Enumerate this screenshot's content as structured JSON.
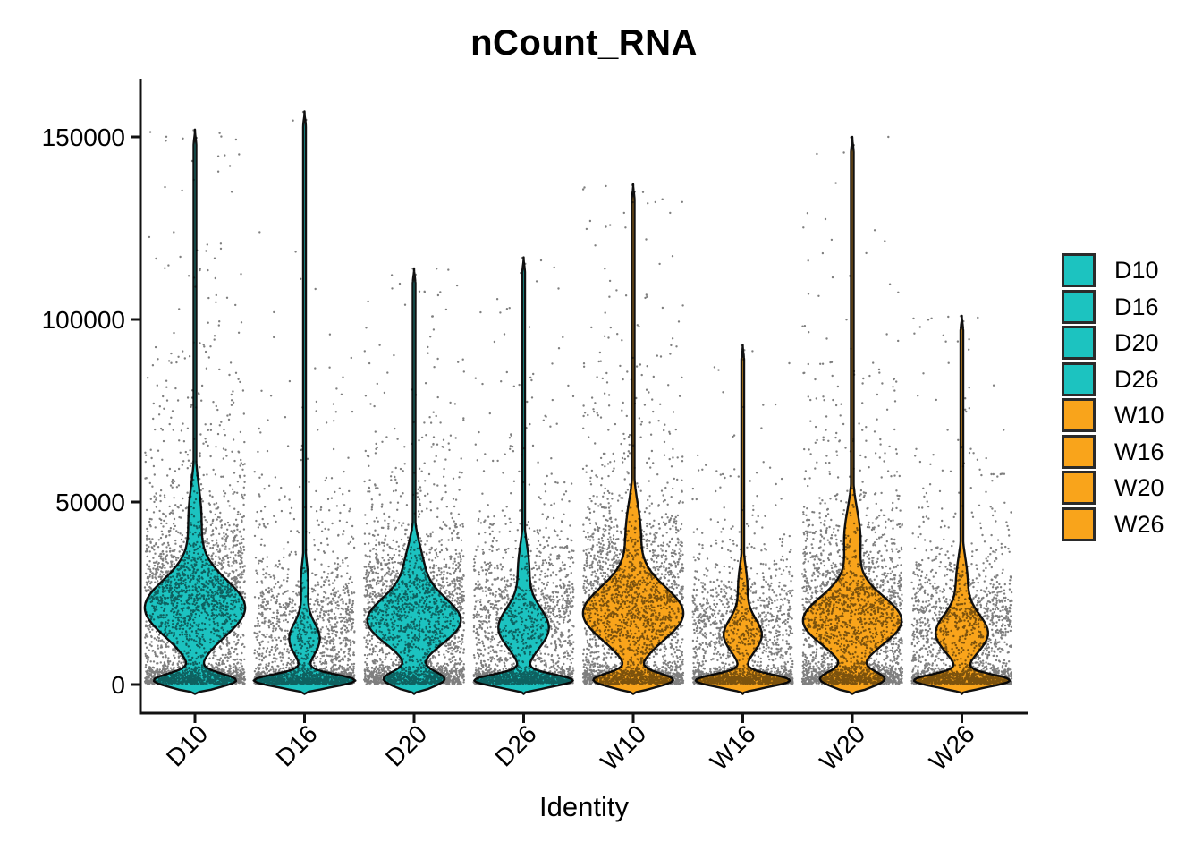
{
  "chart_data": {
    "type": "violin",
    "title": "nCount_RNA",
    "xlabel": "Identity",
    "ylabel": "",
    "ylim": [
      0,
      165000
    ],
    "yticks": [
      0,
      50000,
      100000,
      150000
    ],
    "ytick_labels": [
      "0",
      "50000",
      "100000",
      "150000"
    ],
    "categories": [
      "D10",
      "D16",
      "D20",
      "D26",
      "W10",
      "W16",
      "W20",
      "W26"
    ],
    "legend_position": "right",
    "grid": false,
    "point_style": {
      "color": "#000000",
      "opacity": 0.5,
      "radius": 1.2
    },
    "outline": {
      "color": "#111111",
      "width": 2.4
    },
    "axis_color": "#111111",
    "groups": [
      {
        "label": "D10",
        "color": "#1CC3C0",
        "max": 152000,
        "bulge": {
          "center": 21000,
          "spread": 11000,
          "half_width": 56
        },
        "blob": {
          "center": 1100,
          "spread": 2600,
          "half_width": 44
        },
        "shoulder": {
          "center": 46000,
          "spread": 12000,
          "half_width": 7
        },
        "tail": {
          "start": 22000,
          "scale": 30000
        },
        "points": 2800,
        "w_bottom": 0.26,
        "w_mid": 0.52
      },
      {
        "label": "D16",
        "color": "#1CC3C0",
        "max": 157000,
        "bulge": {
          "center": 12500,
          "spread": 6500,
          "half_width": 17
        },
        "blob": {
          "center": 1100,
          "spread": 2300,
          "half_width": 56
        },
        "shoulder": {
          "center": 28000,
          "spread": 8000,
          "half_width": 4
        },
        "tail": {
          "start": 18000,
          "scale": 20000
        },
        "points": 2000,
        "w_bottom": 0.45,
        "w_mid": 0.39
      },
      {
        "label": "D20",
        "color": "#1CC3C0",
        "max": 114000,
        "bulge": {
          "center": 17500,
          "spread": 9000,
          "half_width": 52
        },
        "blob": {
          "center": 1400,
          "spread": 3000,
          "half_width": 32
        },
        "shoulder": {
          "center": 33000,
          "spread": 8500,
          "half_width": 9
        },
        "tail": {
          "start": 20000,
          "scale": 24000
        },
        "points": 2400,
        "w_bottom": 0.28,
        "w_mid": 0.52
      },
      {
        "label": "D26",
        "color": "#1CC3C0",
        "max": 117000,
        "bulge": {
          "center": 15500,
          "spread": 8000,
          "half_width": 28
        },
        "blob": {
          "center": 1100,
          "spread": 2300,
          "half_width": 54
        },
        "shoulder": {
          "center": 32000,
          "spread": 9000,
          "half_width": 6
        },
        "tail": {
          "start": 18000,
          "scale": 22000
        },
        "points": 2100,
        "w_bottom": 0.4,
        "w_mid": 0.42
      },
      {
        "label": "W10",
        "color": "#F9A41B",
        "max": 137000,
        "bulge": {
          "center": 19500,
          "spread": 10500,
          "half_width": 56
        },
        "blob": {
          "center": 1200,
          "spread": 2600,
          "half_width": 42
        },
        "shoulder": {
          "center": 42000,
          "spread": 11000,
          "half_width": 8
        },
        "tail": {
          "start": 22000,
          "scale": 27000
        },
        "points": 2700,
        "w_bottom": 0.27,
        "w_mid": 0.52
      },
      {
        "label": "W16",
        "color": "#F9A41B",
        "max": 93000,
        "bulge": {
          "center": 13500,
          "spread": 6500,
          "half_width": 21
        },
        "blob": {
          "center": 1100,
          "spread": 2300,
          "half_width": 52
        },
        "shoulder": {
          "center": 27000,
          "spread": 8000,
          "half_width": 5
        },
        "tail": {
          "start": 16000,
          "scale": 17000
        },
        "points": 1900,
        "w_bottom": 0.43,
        "w_mid": 0.41
      },
      {
        "label": "W20",
        "color": "#F9A41B",
        "max": 150000,
        "bulge": {
          "center": 17500,
          "spread": 9500,
          "half_width": 55
        },
        "blob": {
          "center": 1400,
          "spread": 3000,
          "half_width": 33
        },
        "shoulder": {
          "center": 40000,
          "spread": 11000,
          "half_width": 9
        },
        "tail": {
          "start": 20000,
          "scale": 27000
        },
        "points": 2500,
        "w_bottom": 0.28,
        "w_mid": 0.52
      },
      {
        "label": "W26",
        "color": "#F9A41B",
        "max": 101000,
        "bulge": {
          "center": 14000,
          "spread": 7500,
          "half_width": 29
        },
        "blob": {
          "center": 1100,
          "spread": 2300,
          "half_width": 52
        },
        "shoulder": {
          "center": 29000,
          "spread": 8500,
          "half_width": 6
        },
        "tail": {
          "start": 17000,
          "scale": 20000
        },
        "points": 2000,
        "w_bottom": 0.41,
        "w_mid": 0.41
      }
    ]
  }
}
